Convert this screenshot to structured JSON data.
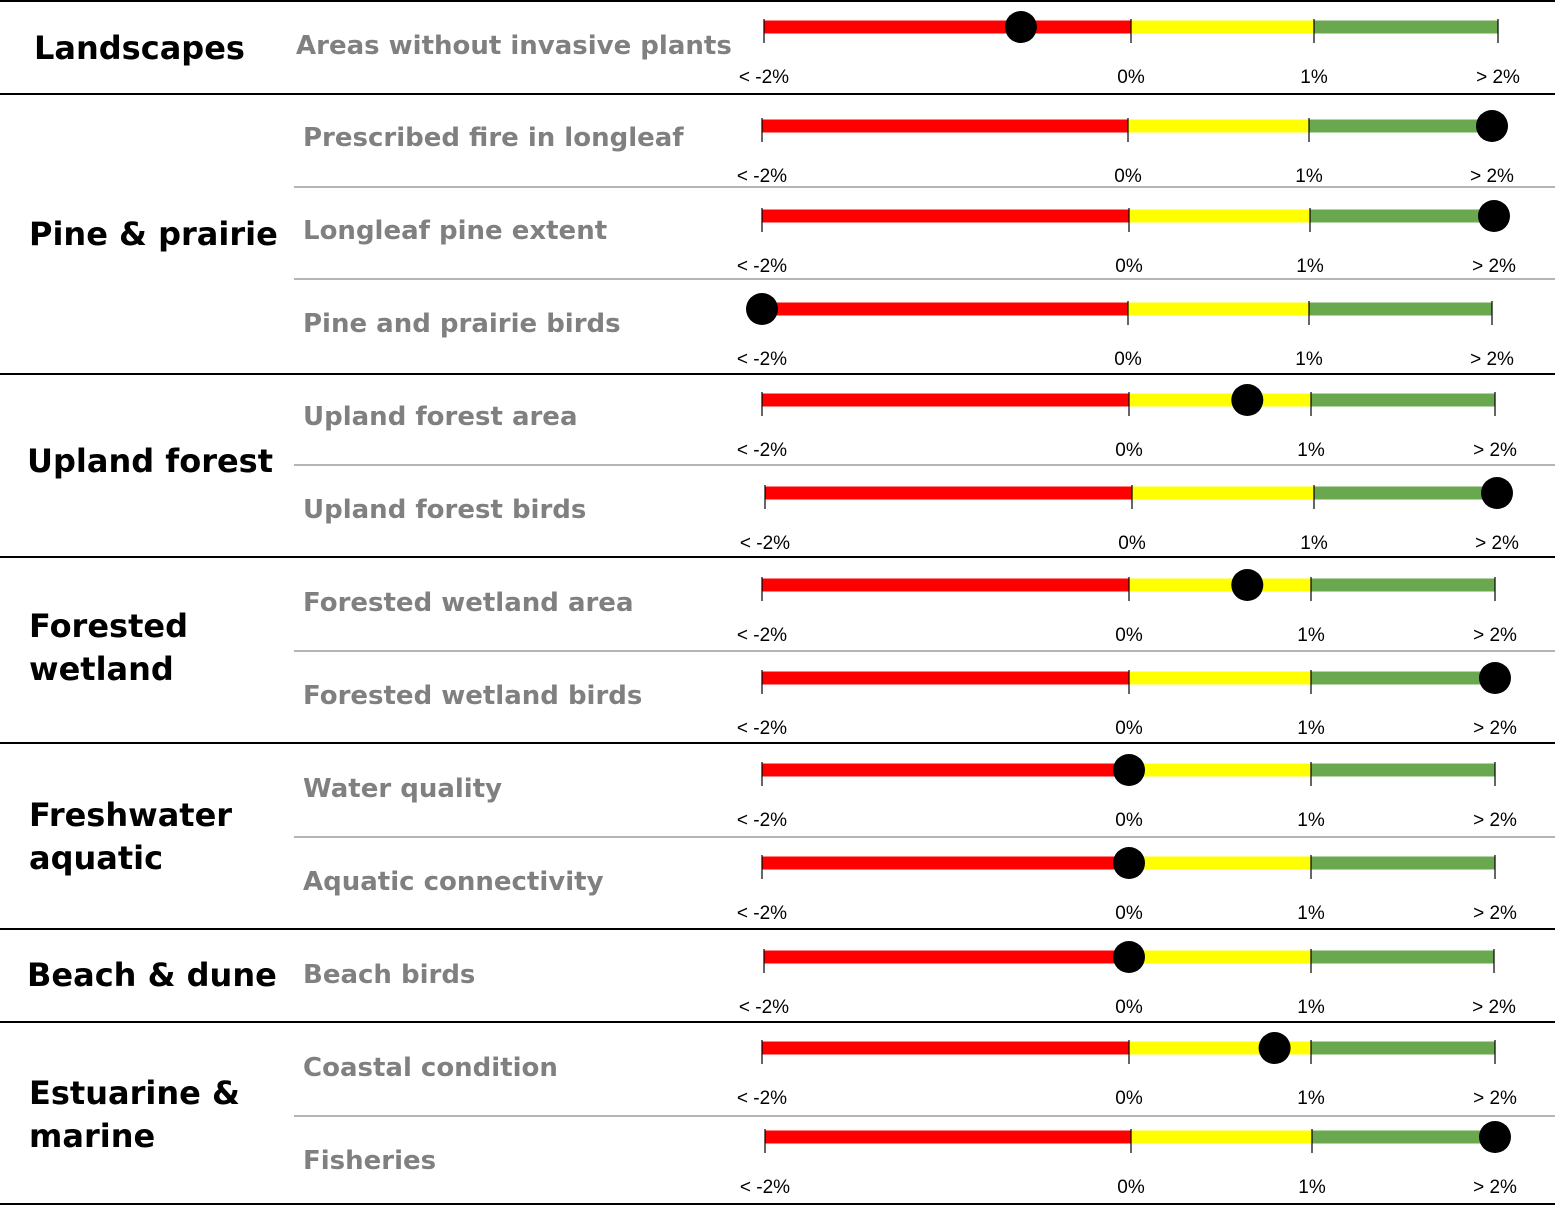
{
  "chart_data": {
    "type": "bar",
    "axis_ticks": [
      "< -2%",
      "0%",
      "1%",
      "> 2%"
    ],
    "xlim": [
      -2,
      2
    ],
    "colors": {
      "negative": "#ff0000",
      "low": "#ffff00",
      "positive": "#6aa84f",
      "marker": "#000000"
    },
    "groups": [
      {
        "name": "Landscapes",
        "indicators": [
          {
            "label": "Areas without invasive plants",
            "value": -0.6
          }
        ]
      },
      {
        "name": "Pine & prairie",
        "indicators": [
          {
            "label": "Prescribed fire in longleaf",
            "value": 2
          },
          {
            "label": "Longleaf pine extent",
            "value": 2
          },
          {
            "label": "Pine and prairie birds",
            "value": -2
          }
        ]
      },
      {
        "name": "Upland forest",
        "indicators": [
          {
            "label": "Upland forest area",
            "value": 0.65
          },
          {
            "label": "Upland forest birds",
            "value": 2
          }
        ]
      },
      {
        "name": "Forested wetland",
        "indicators": [
          {
            "label": "Forested wetland area",
            "value": 0.65
          },
          {
            "label": "Forested wetland birds",
            "value": 2
          }
        ]
      },
      {
        "name": "Freshwater aquatic",
        "indicators": [
          {
            "label": "Water quality",
            "value": 0
          },
          {
            "label": "Aquatic connectivity",
            "value": 0
          }
        ]
      },
      {
        "name": "Beach & dune",
        "indicators": [
          {
            "label": "Beach birds",
            "value": 0
          }
        ]
      },
      {
        "name": "Estuarine & marine",
        "indicators": [
          {
            "label": "Coastal condition",
            "value": 0.8
          },
          {
            "label": "Fisheries",
            "value": 2
          }
        ]
      }
    ]
  }
}
